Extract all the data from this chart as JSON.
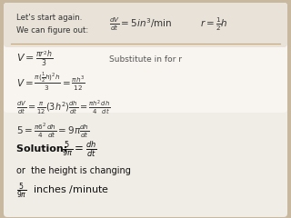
{
  "background_color": "#c8b8a0",
  "box_top_color": "#e8e4de",
  "box_bottom_color": "#d8d4cc",
  "header_text1": "Let's start again.",
  "header_text2": "We can figure out:",
  "header_formula1": "$\\frac{dV}{dt} = 5in^3 / \\mathrm{min}$",
  "header_formula2": "$r = \\frac{1}{2}h$",
  "separator_color": "#c8a878",
  "line1": "$V = \\frac{\\pi r^2 h}{3}$",
  "line1b": "Substitute in for r",
  "line2": "$V = \\frac{\\pi(\\frac{1}{2}h)^2 h}{3} = \\frac{\\pi h^3}{12}$",
  "line3": "$\\frac{dV}{dt} = \\frac{\\pi}{12}(3h^2)\\frac{dh}{dt} = \\frac{\\pi h^2}{4}\\frac{dh}{dt}$",
  "line4": "$5 = \\frac{\\pi 6^2}{4}\\frac{dh}{dt} = 9\\pi\\frac{dh}{dt}$",
  "line5_text": "Solution: ",
  "line5_math": "$\\frac{5}{9\\pi} = \\frac{dh}{dt}$",
  "line6": "or  the height is changing",
  "line7": "$\\frac{5}{9\\pi}$  inches /minute"
}
